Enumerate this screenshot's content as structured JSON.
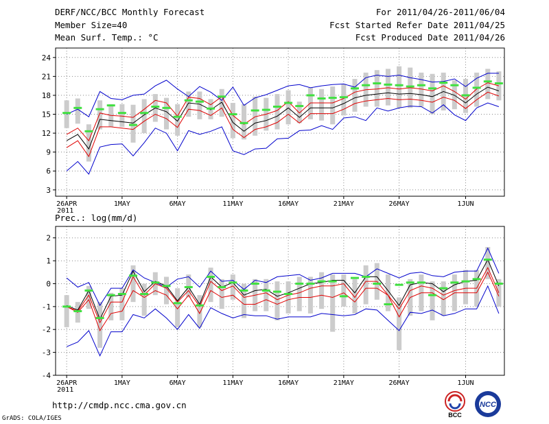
{
  "header": {
    "title": "DERF/NCC/BCC Monthly Forecast",
    "member_size": "Member Size=40",
    "variable": "Mean Surf. Temp.: °C",
    "forecast_range": "For 2011/04/26-2011/06/04",
    "started_refer": "Fcst Started Refer Date 2011/04/25",
    "produced": "Fcst Produced Date 2011/04/26"
  },
  "footer": {
    "url": "http://cmdp.ncc.cma.gov.cn",
    "credit": "GrADS: COLA/IGES",
    "logo_left_text": "BCC",
    "logo_right_text": "NCC"
  },
  "colors": {
    "mean": "#000000",
    "spread": "#e00000",
    "extreme": "#0000cc",
    "box": "#cccccc",
    "marker": "#40e040"
  },
  "chart_data": [
    {
      "type": "line",
      "title": "Mean Surf. Temp.: °C",
      "xlabel": "",
      "ylabel": "",
      "x_ticks": [
        {
          "day": 0,
          "label": "26APR"
        },
        {
          "day": 5,
          "label": "1MAY"
        },
        {
          "day": 10,
          "label": "6MAY"
        },
        {
          "day": 15,
          "label": "11MAY"
        },
        {
          "day": 20,
          "label": "16MAY"
        },
        {
          "day": 25,
          "label": "21MAY"
        },
        {
          "day": 30,
          "label": "26MAY"
        },
        {
          "day": 36,
          "label": "1JUN"
        }
      ],
      "year_label": "2011",
      "xlim": [
        -1,
        39.5
      ],
      "ylim": [
        2,
        25.5
      ],
      "y_ticks": [
        3,
        6,
        9,
        12,
        15,
        18,
        21,
        24
      ],
      "series": [
        {
          "name": "max",
          "color": "extreme",
          "values": [
            15.0,
            15.8,
            14.6,
            18.6,
            17.5,
            17.3,
            18.0,
            18.2,
            19.5,
            20.4,
            19.0,
            17.8,
            19.4,
            18.5,
            17.2,
            19.3,
            16.4,
            17.6,
            18.1,
            18.8,
            19.5,
            19.7,
            19.2,
            19.5,
            19.7,
            19.8,
            19.3,
            20.8,
            21.2,
            21.0,
            21.2,
            20.8,
            20.5,
            20.1,
            20.2,
            20.6,
            19.4,
            20.7,
            21.5,
            21.5
          ]
        },
        {
          "name": "upper",
          "color": "spread",
          "values": [
            11.8,
            12.8,
            10.8,
            15.2,
            14.8,
            14.7,
            14.5,
            15.8,
            17.2,
            16.8,
            14.7,
            17.7,
            17.5,
            16.5,
            17.8,
            14.8,
            13.4,
            14.6,
            15.0,
            15.6,
            17.0,
            15.2,
            16.8,
            16.8,
            16.8,
            17.5,
            18.5,
            18.9,
            19.0,
            19.2,
            19.0,
            19.2,
            19.0,
            18.7,
            19.5,
            18.6,
            17.4,
            19.0,
            20.0,
            19.5
          ]
        },
        {
          "name": "mean",
          "color": "mean",
          "values": [
            10.8,
            11.8,
            9.5,
            14.2,
            14.0,
            13.8,
            13.6,
            14.9,
            16.0,
            15.4,
            13.9,
            16.8,
            16.6,
            15.7,
            16.9,
            13.7,
            12.3,
            13.6,
            14.0,
            14.7,
            16.0,
            14.5,
            16.0,
            16.0,
            16.0,
            16.7,
            17.6,
            18.0,
            18.2,
            18.4,
            18.2,
            18.3,
            18.1,
            17.8,
            18.6,
            18.0,
            16.8,
            18.2,
            19.3,
            18.7
          ]
        },
        {
          "name": "lower",
          "color": "spread",
          "values": [
            9.7,
            10.8,
            8.3,
            13.0,
            13.0,
            12.8,
            12.6,
            13.9,
            15.0,
            14.3,
            12.9,
            15.8,
            15.6,
            14.8,
            16.0,
            12.6,
            11.3,
            12.6,
            13.0,
            13.7,
            15.0,
            13.6,
            15.1,
            15.1,
            15.1,
            15.8,
            16.7,
            17.1,
            17.3,
            17.5,
            17.3,
            17.4,
            17.2,
            16.9,
            17.7,
            17.2,
            15.9,
            17.3,
            18.5,
            17.9
          ]
        },
        {
          "name": "min",
          "color": "extreme",
          "values": [
            6.0,
            7.5,
            5.5,
            9.8,
            10.2,
            10.3,
            8.4,
            10.5,
            12.8,
            12.0,
            9.2,
            12.4,
            11.8,
            12.3,
            13.0,
            9.2,
            8.6,
            9.5,
            9.6,
            11.1,
            11.2,
            12.4,
            12.5,
            13.2,
            12.6,
            14.4,
            14.6,
            14.0,
            16.0,
            15.5,
            16.0,
            16.3,
            16.2,
            15.2,
            16.5,
            14.9,
            14.0,
            16.0,
            16.8,
            16.2
          ]
        }
      ],
      "boxes": [
        [
          12.8,
          17.2
        ],
        [
          13.5,
          17.5
        ],
        [
          7.5,
          13.4
        ],
        [
          12.6,
          17.2
        ],
        [
          13.0,
          16.6
        ],
        [
          13.0,
          16.6
        ],
        [
          10.5,
          16.5
        ],
        [
          12.0,
          17.4
        ],
        [
          13.8,
          18.2
        ],
        [
          12.6,
          17.6
        ],
        [
          11.6,
          16.6
        ],
        [
          14.6,
          18.6
        ],
        [
          14.2,
          18.6
        ],
        [
          14.2,
          17.4
        ],
        [
          14.6,
          19.0
        ],
        [
          11.2,
          16.8
        ],
        [
          11.0,
          16.6
        ],
        [
          11.6,
          17.8
        ],
        [
          12.4,
          17.6
        ],
        [
          12.6,
          18.2
        ],
        [
          13.4,
          18.8
        ],
        [
          13.6,
          17.0
        ],
        [
          14.2,
          19.2
        ],
        [
          14.0,
          19.0
        ],
        [
          13.4,
          19.4
        ],
        [
          14.8,
          19.8
        ],
        [
          15.4,
          20.6
        ],
        [
          16.2,
          21.6
        ],
        [
          16.2,
          22.0
        ],
        [
          16.4,
          22.2
        ],
        [
          16.0,
          22.6
        ],
        [
          16.0,
          22.4
        ],
        [
          16.2,
          21.6
        ],
        [
          15.0,
          21.4
        ],
        [
          15.6,
          21.6
        ],
        [
          15.8,
          20.4
        ],
        [
          15.2,
          20.6
        ],
        [
          16.2,
          21.6
        ],
        [
          17.4,
          22.2
        ],
        [
          17.2,
          21.8
        ]
      ],
      "markers": [
        15.2,
        16.0,
        12.3,
        15.8,
        16.4,
        15.2,
        13.3,
        15.2,
        16.2,
        16.0,
        14.6,
        17.2,
        17.0,
        15.9,
        17.8,
        15.0,
        13.6,
        15.6,
        15.7,
        16.2,
        16.8,
        16.3,
        18.0,
        17.5,
        17.6,
        17.7,
        19.1,
        19.6,
        19.9,
        19.7,
        19.6,
        19.4,
        19.6,
        19.1,
        20.0,
        19.6,
        18.0,
        19.2,
        20.2,
        19.9
      ]
    },
    {
      "type": "line",
      "title": "Prec.: log(mm/d)",
      "xlabel": "",
      "ylabel": "",
      "x_ticks": [
        {
          "day": 0,
          "label": "26APR"
        },
        {
          "day": 5,
          "label": "1MAY"
        },
        {
          "day": 10,
          "label": "6MAY"
        },
        {
          "day": 15,
          "label": "11MAY"
        },
        {
          "day": 20,
          "label": "16MAY"
        },
        {
          "day": 25,
          "label": "21MAY"
        },
        {
          "day": 30,
          "label": "26MAY"
        },
        {
          "day": 36,
          "label": "1JUN"
        }
      ],
      "year_label": "2011",
      "xlim": [
        -1,
        39.5
      ],
      "ylim": [
        -4,
        2.5
      ],
      "y_ticks": [
        -4,
        -3,
        -2,
        -1,
        0,
        1,
        2
      ],
      "series": [
        {
          "name": "max",
          "color": "extreme",
          "values": [
            0.25,
            -0.15,
            0.05,
            -0.95,
            -0.2,
            -0.2,
            0.6,
            0.25,
            0.05,
            -0.15,
            0.2,
            0.3,
            -0.15,
            0.55,
            0.1,
            0.15,
            -0.25,
            0.15,
            0.05,
            0.3,
            0.35,
            0.4,
            0.15,
            0.25,
            0.45,
            0.45,
            0.45,
            0.3,
            0.65,
            0.45,
            0.25,
            0.45,
            0.5,
            0.35,
            0.3,
            0.5,
            0.55,
            0.55,
            1.55,
            0.45
          ]
        },
        {
          "name": "upper",
          "color": "spread",
          "values": [
            -1.0,
            -1.2,
            -0.5,
            -1.7,
            -0.8,
            -0.8,
            0.3,
            -0.5,
            0.0,
            -0.2,
            -0.8,
            -0.3,
            -1.0,
            0.1,
            -0.3,
            -0.1,
            -0.6,
            -0.5,
            -0.4,
            -0.7,
            -0.5,
            -0.4,
            -0.2,
            -0.1,
            -0.1,
            0.0,
            -0.6,
            0.1,
            0.1,
            -0.5,
            -1.1,
            -0.3,
            -0.1,
            -0.2,
            -0.5,
            -0.3,
            -0.2,
            -0.2,
            0.7,
            -0.4
          ]
        },
        {
          "name": "mean",
          "color": "mean",
          "values": [
            -0.95,
            -1.15,
            -0.3,
            -1.55,
            -0.55,
            -0.5,
            0.55,
            -0.35,
            0.1,
            -0.1,
            -0.75,
            -0.15,
            -0.9,
            0.3,
            -0.15,
            0.05,
            -0.5,
            -0.3,
            -0.25,
            -0.55,
            -0.4,
            -0.2,
            0.0,
            0.05,
            0.15,
            0.15,
            -0.4,
            0.3,
            0.3,
            -0.3,
            -0.95,
            -0.05,
            0.05,
            0.0,
            -0.35,
            -0.05,
            0.1,
            0.15,
            1.05,
            -0.1
          ]
        },
        {
          "name": "lower",
          "color": "spread",
          "values": [
            -1.0,
            -1.25,
            -0.7,
            -2.05,
            -1.3,
            -1.2,
            -0.3,
            -0.6,
            -0.3,
            -0.5,
            -1.1,
            -0.5,
            -1.3,
            -0.3,
            -0.6,
            -0.5,
            -0.9,
            -0.9,
            -0.7,
            -0.9,
            -0.7,
            -0.6,
            -0.6,
            -0.5,
            -0.6,
            -0.4,
            -0.8,
            -0.2,
            -0.2,
            -0.5,
            -1.45,
            -0.6,
            -0.4,
            -0.4,
            -0.7,
            -0.4,
            -0.4,
            -0.4,
            0.5,
            -0.55
          ]
        },
        {
          "name": "min",
          "color": "extreme",
          "values": [
            -2.75,
            -2.55,
            -2.05,
            -3.15,
            -2.1,
            -2.1,
            -1.35,
            -1.5,
            -1.1,
            -1.5,
            -2.0,
            -1.35,
            -1.95,
            -1.05,
            -1.3,
            -1.5,
            -1.35,
            -1.4,
            -1.4,
            -1.55,
            -1.45,
            -1.45,
            -1.45,
            -1.3,
            -1.35,
            -1.4,
            -1.35,
            -1.1,
            -1.15,
            -1.6,
            -2.05,
            -1.25,
            -1.3,
            -1.15,
            -1.4,
            -1.3,
            -1.1,
            -1.1,
            -0.1,
            -1.3
          ]
        },
        {
          "name": "min-last",
          "color": "extreme",
          "values": []
        }
      ],
      "boxes": [
        [
          -1.9,
          -0.5
        ],
        [
          -1.7,
          -0.8
        ],
        [
          -1.1,
          -0.1
        ],
        [
          -2.8,
          -0.8
        ],
        [
          -1.6,
          -0.4
        ],
        [
          -1.6,
          -0.2
        ],
        [
          -0.8,
          0.8
        ],
        [
          -1.4,
          0.0
        ],
        [
          -0.5,
          0.5
        ],
        [
          -0.9,
          0.3
        ],
        [
          -1.9,
          -0.2
        ],
        [
          -0.6,
          0.4
        ],
        [
          -1.9,
          -0.5
        ],
        [
          -0.8,
          0.7
        ],
        [
          -1.1,
          0.2
        ],
        [
          -0.7,
          0.4
        ],
        [
          -1.5,
          0.0
        ],
        [
          -1.2,
          0.2
        ],
        [
          -1.2,
          0.2
        ],
        [
          -1.6,
          0.1
        ],
        [
          -1.3,
          0.1
        ],
        [
          -1.2,
          0.3
        ],
        [
          -1.3,
          0.3
        ],
        [
          -1.1,
          0.5
        ],
        [
          -2.1,
          0.4
        ],
        [
          -1.0,
          0.4
        ],
        [
          -1.3,
          0.2
        ],
        [
          -0.9,
          0.8
        ],
        [
          -0.7,
          0.9
        ],
        [
          -1.2,
          0.4
        ],
        [
          -2.9,
          -0.6
        ],
        [
          -1.4,
          0.2
        ],
        [
          -1.2,
          0.4
        ],
        [
          -1.6,
          0.1
        ],
        [
          -1.4,
          0.1
        ],
        [
          -1.2,
          0.4
        ],
        [
          -0.9,
          0.6
        ],
        [
          -1.0,
          0.6
        ],
        [
          0.2,
          1.6
        ],
        [
          -1.0,
          0.2
        ]
      ],
      "markers": [
        -1.0,
        -1.2,
        -0.3,
        -1.5,
        -0.5,
        -0.45,
        0.35,
        -0.45,
        0.05,
        -0.1,
        -0.85,
        -0.15,
        -0.95,
        0.3,
        -0.15,
        0.05,
        -0.3,
        0.0,
        -0.3,
        -0.35,
        -0.45,
        0.0,
        0.0,
        0.1,
        0.1,
        -0.55,
        0.25,
        0.3,
        0.0,
        -0.9,
        -0.05,
        0.05,
        0.05,
        -0.5,
        -0.2,
        0.05,
        0.1,
        0.2,
        1.05,
        0.0
      ]
    }
  ]
}
